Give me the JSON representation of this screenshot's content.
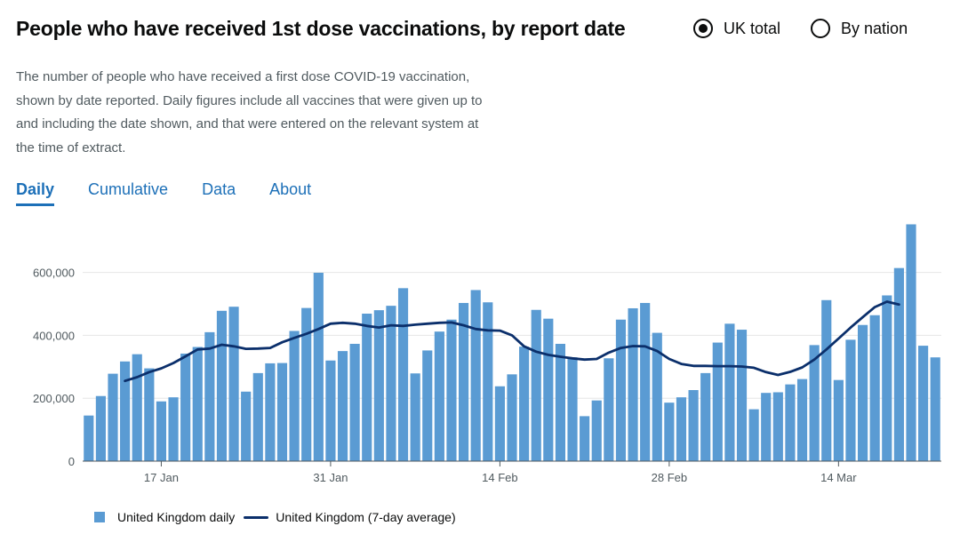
{
  "header": {
    "title": "People who have received 1st dose vaccinations, by report date",
    "description": "The number of people who have received a first dose COVID-19 vaccination, shown by date reported. Daily figures include all vaccines that were given up to and including the date shown, and that were entered on the relevant system at the time of extract."
  },
  "view_options": [
    {
      "label": "UK total",
      "selected": true
    },
    {
      "label": "By nation",
      "selected": false
    }
  ],
  "tabs": [
    {
      "label": "Daily",
      "active": true
    },
    {
      "label": "Cumulative",
      "active": false
    },
    {
      "label": "Data",
      "active": false
    },
    {
      "label": "About",
      "active": false
    }
  ],
  "legend": {
    "bars": "United Kingdom daily",
    "line": "United Kingdom (7-day average)"
  },
  "colors": {
    "bar": "#5a9bd3",
    "line": "#0b2f6b",
    "accent": "#1d70b8"
  },
  "chart_data": {
    "type": "bar",
    "x_start": "2021-01-11",
    "x_tick_labels": [
      "17 Jan",
      "31 Jan",
      "14 Feb",
      "28 Feb",
      "14 Mar"
    ],
    "x_tick_indices": [
      6,
      20,
      34,
      48,
      62
    ],
    "y_ticks": [
      0,
      200000,
      400000,
      600000
    ],
    "y_tick_labels": [
      "0",
      "200,000",
      "400,000",
      "600,000"
    ],
    "ylim": [
      0,
      760000
    ],
    "series": [
      {
        "name": "United Kingdom daily",
        "type": "bar",
        "values": [
          145000,
          207000,
          278000,
          317000,
          340000,
          295000,
          190000,
          203000,
          342000,
          363000,
          410000,
          478000,
          491000,
          221000,
          280000,
          311000,
          312000,
          414000,
          487000,
          599000,
          320000,
          350000,
          373000,
          469000,
          480000,
          494000,
          550000,
          279000,
          352000,
          412000,
          450000,
          503000,
          544000,
          505000,
          238000,
          276000,
          364000,
          481000,
          453000,
          373000,
          330000,
          143000,
          193000,
          327000,
          450000,
          486000,
          503000,
          408000,
          186000,
          203000,
          226000,
          280000,
          377000,
          437000,
          418000,
          165000,
          217000,
          219000,
          244000,
          261000,
          369000,
          512000,
          258000,
          386000,
          433000,
          464000,
          527000,
          614000,
          753000,
          367000,
          330000
        ]
      },
      {
        "name": "United Kingdom (7-day average)",
        "type": "line",
        "values": [
          null,
          null,
          null,
          255000,
          267000,
          283000,
          295000,
          312000,
          333000,
          355000,
          358000,
          370000,
          365000,
          357000,
          358000,
          360000,
          378000,
          392000,
          405000,
          420000,
          437000,
          440000,
          437000,
          430000,
          425000,
          432000,
          430000,
          434000,
          437000,
          440000,
          441000,
          432000,
          420000,
          416000,
          415000,
          400000,
          365000,
          348000,
          338000,
          332000,
          327000,
          323000,
          325000,
          345000,
          360000,
          366000,
          365000,
          350000,
          325000,
          309000,
          303000,
          303000,
          302000,
          302000,
          301000,
          297000,
          283000,
          274000,
          284000,
          298000,
          323000,
          355000,
          390000,
          425000,
          458000,
          490000,
          507000,
          498000
        ]
      }
    ]
  }
}
